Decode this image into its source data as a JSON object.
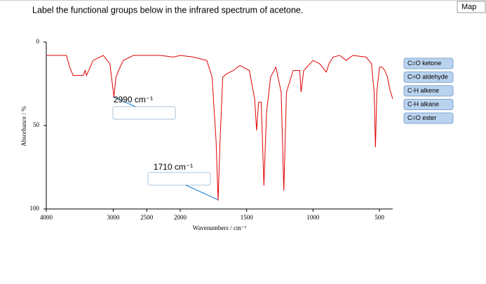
{
  "question": "Label the functional groups below in the infrared spectrum of acetone.",
  "map_button": "Map",
  "answer_labels": [
    "C=O ketone",
    "C=O aldehyde",
    "C-H alkene",
    "C-H alkane",
    "C=O ester"
  ],
  "chart_data": {
    "type": "line",
    "xlabel": "Wavenumbers / cm⁻¹",
    "ylabel": "Absorbance / %",
    "color": "#e00000",
    "xlim": [
      4000,
      400
    ],
    "xticks": [
      4000,
      3000,
      2500,
      2000,
      1500,
      1000,
      500
    ],
    "ylim": [
      0,
      100
    ],
    "yticks": [
      0,
      50,
      100
    ],
    "y_inverted": true,
    "annotations": [
      "2990 cm⁻¹",
      "1710 cm⁻¹"
    ],
    "x": [
      4000,
      3700,
      3650,
      3600,
      3450,
      3420,
      3400,
      3300,
      3150,
      3050,
      2990,
      2960,
      2920,
      2850,
      2700,
      2500,
      2300,
      2100,
      2000,
      1900,
      1800,
      1760,
      1730,
      1715,
      1700,
      1680,
      1650,
      1600,
      1550,
      1480,
      1440,
      1425,
      1410,
      1390,
      1370,
      1350,
      1320,
      1280,
      1240,
      1220,
      1200,
      1150,
      1100,
      1090,
      1070,
      1000,
      950,
      900,
      880,
      850,
      800,
      750,
      700,
      600,
      560,
      540,
      530,
      520,
      500,
      480,
      460,
      440,
      420,
      400
    ],
    "values": [
      8,
      8,
      15,
      20,
      20,
      17,
      20,
      11,
      8,
      13,
      33,
      21,
      17,
      11,
      8,
      8,
      8,
      9,
      8,
      9,
      11,
      21,
      59,
      95,
      59,
      21,
      19,
      17,
      14,
      17,
      34,
      53,
      36,
      36,
      86,
      42,
      21,
      15,
      30,
      89,
      30,
      17,
      17,
      30,
      17,
      11,
      13,
      18,
      13,
      9,
      8,
      11,
      8,
      9,
      13,
      30,
      63,
      30,
      15,
      15,
      17,
      21,
      29,
      34
    ]
  }
}
